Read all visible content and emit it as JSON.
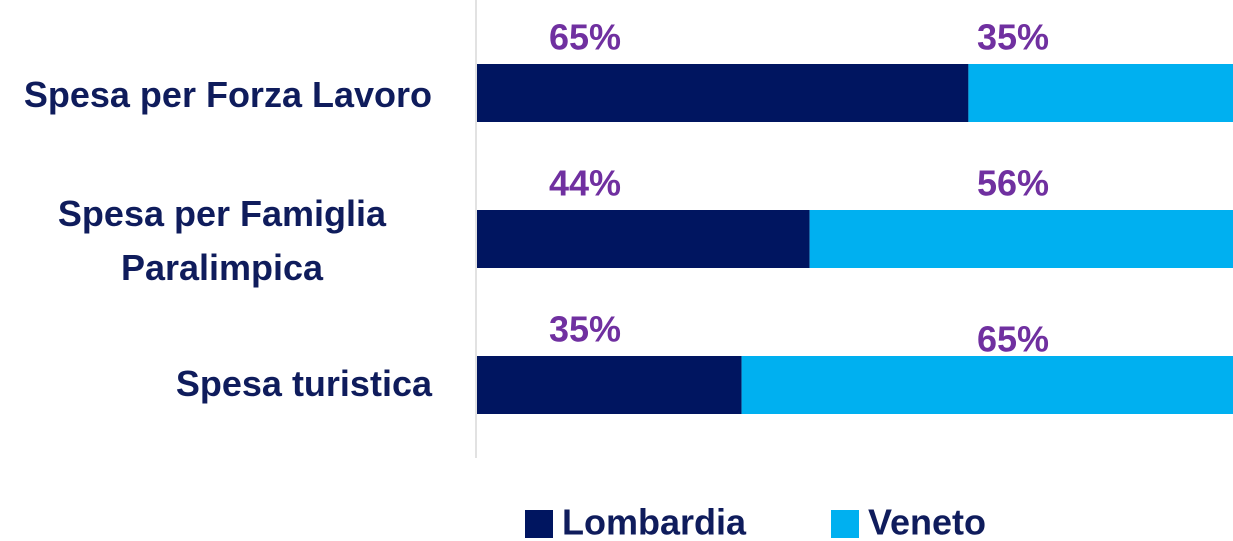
{
  "chart_data": {
    "type": "stacked_bar_horizontal",
    "categories": [
      "Spesa per Forza Lavoro",
      "Spesa per Famiglia Paralimpica",
      "Spesa turistica"
    ],
    "series": [
      {
        "name": "Lombardia",
        "color": "#001560",
        "values": [
          65,
          44,
          35
        ],
        "value_labels": [
          "65%",
          "44%",
          "35%"
        ]
      },
      {
        "name": "Veneto",
        "color": "#00b0f0",
        "values": [
          35,
          56,
          65
        ],
        "value_labels": [
          "35%",
          "56%",
          "65%"
        ]
      }
    ],
    "xlim": [
      0,
      100
    ],
    "label_color": "#7030a0",
    "legend": "bottom"
  }
}
